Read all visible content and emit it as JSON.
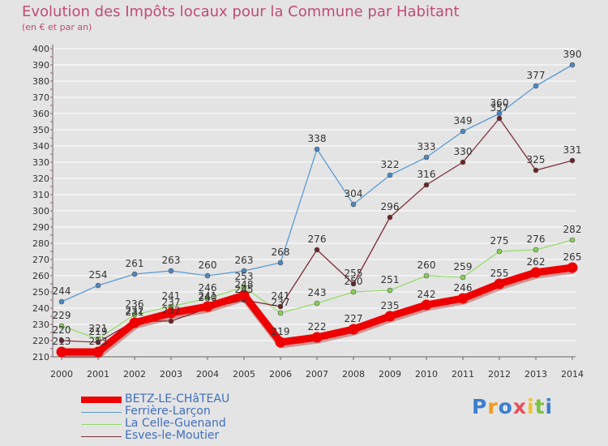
{
  "chart_data": {
    "type": "line",
    "title": "Evolution des Impôts locaux pour la Commune par Habitant",
    "subtitle": "(en € et par an)",
    "x": [
      "2000",
      "2001",
      "2002",
      "2003",
      "2004",
      "2005",
      "2006",
      "2007",
      "2008",
      "2009",
      "2010",
      "2011",
      "2012",
      "2013",
      "2014"
    ],
    "yticks": [
      210,
      220,
      230,
      240,
      250,
      260,
      270,
      280,
      290,
      300,
      310,
      320,
      330,
      340,
      350,
      360,
      370,
      380,
      390,
      400
    ],
    "ylim": [
      210,
      400
    ],
    "series": [
      {
        "name": "Ferrière-Larçon",
        "color": "#5b9bd5",
        "dot": "#4a88c2",
        "values": [
          244,
          254,
          261,
          263,
          260,
          263,
          268,
          338,
          304,
          322,
          333,
          349,
          360,
          377,
          390
        ]
      },
      {
        "name": "La Celle-Guenand",
        "color": "#96db6a",
        "dot": "#88d05a",
        "values": [
          229,
          221,
          236,
          241,
          246,
          253,
          237,
          243,
          250,
          251,
          260,
          259,
          275,
          276,
          282
        ]
      },
      {
        "name": "Esves-le-Moutier",
        "color": "#7d2f36",
        "dot": "#6e2228",
        "values": [
          220,
          219,
          232,
          232,
          240,
          245,
          241,
          276,
          255,
          296,
          316,
          330,
          357,
          325,
          331
        ]
      },
      {
        "name": "BETZ-LE-CHâTEAU",
        "color": "#ee0000",
        "dot": "#ee0000",
        "values": [
          213,
          213,
          231,
          237,
          241,
          248,
          219,
          222,
          227,
          235,
          242,
          246,
          255,
          262,
          265
        ]
      }
    ],
    "legend": [
      "BETZ-LE-CHâTEAU",
      "Ferrière-Larçon",
      "La Celle-Guenand",
      "Esves-le-Moutier"
    ]
  },
  "branding": {
    "logo_letters": [
      "P",
      "r",
      "o",
      "x",
      "i",
      "t",
      "i"
    ],
    "logo_colors": [
      "#3b7fd0",
      "#f29a1f",
      "#3b7fd0",
      "#e8505b",
      "#f2c12e",
      "#7cc242",
      "#3b7fd0"
    ]
  }
}
